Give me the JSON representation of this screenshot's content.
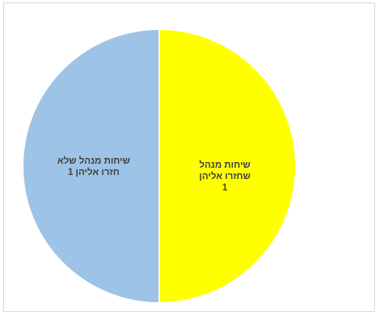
{
  "chart_data": {
    "type": "pie",
    "title": "",
    "slices": [
      {
        "label": "שיחות מנהל שחזרו אליהן 1",
        "label_lines": [
          "שיחות מנהל",
          "שחזרו אליהן",
          "1"
        ],
        "value": 1,
        "color": "#FFFF00"
      },
      {
        "label": "שיחות מנהל שלא חזרו אליהן 1",
        "label_lines": [
          "שיחות מנהל שלא",
          "חזרו אליהן 1"
        ],
        "value": 1,
        "color": "#9DC3E6"
      }
    ],
    "legend": "none"
  }
}
